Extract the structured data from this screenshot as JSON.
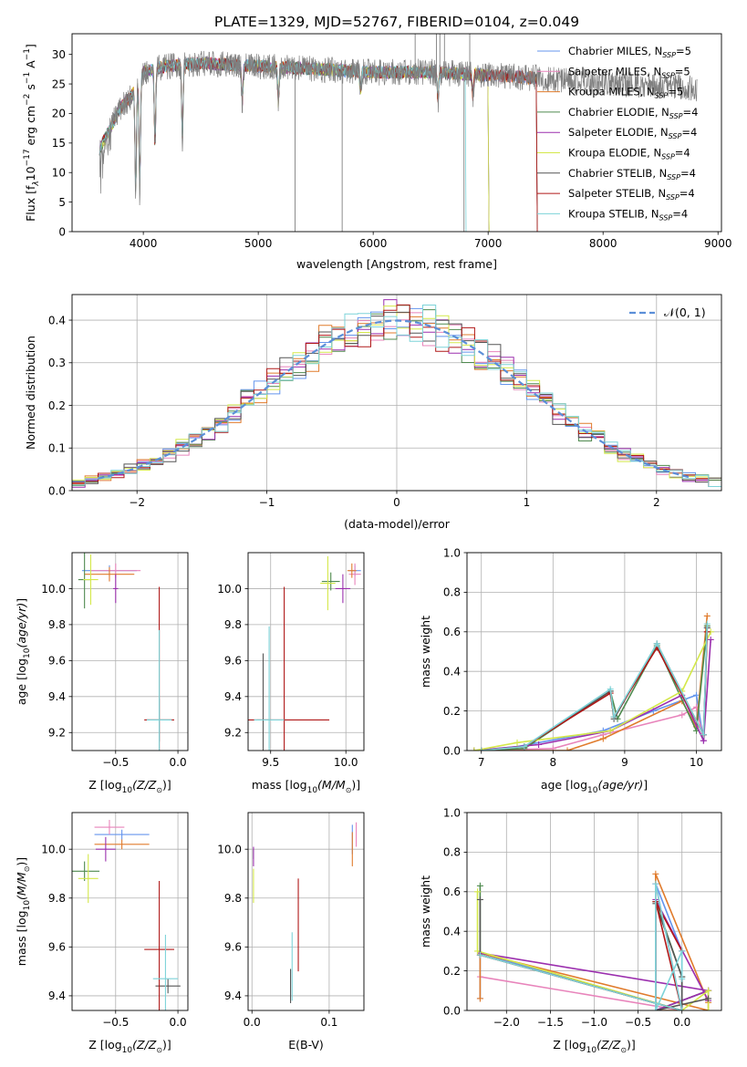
{
  "figure": {
    "title": "PLATE=1329, MJD=52767, FIBERID=0104, z=0.049"
  },
  "models": [
    {
      "label": "Chabrier MILES, N",
      "sub": "SSP",
      "suffix": "=5",
      "color": "#6495ed"
    },
    {
      "label": "Salpeter MILES, N",
      "sub": "SSP",
      "suffix": "=5",
      "color": "#e884bb"
    },
    {
      "label": "Kroupa MILES, N",
      "sub": "SSP",
      "suffix": "=5",
      "color": "#e07b2c"
    },
    {
      "label": "Chabrier ELODIE, N",
      "sub": "SSP",
      "suffix": "=4",
      "color": "#4f8a4f"
    },
    {
      "label": "Salpeter ELODIE, N",
      "sub": "SSP",
      "suffix": "=4",
      "color": "#9b2fae"
    },
    {
      "label": "Kroupa ELODIE, N",
      "sub": "SSP",
      "suffix": "=4",
      "color": "#d4e84a"
    },
    {
      "label": "Chabrier STELIB, N",
      "sub": "SSP",
      "suffix": "=4",
      "color": "#555555"
    },
    {
      "label": "Salpeter STELIB, N",
      "sub": "SSP",
      "suffix": "=4",
      "color": "#b01818"
    },
    {
      "label": "Kroupa STELIB, N",
      "sub": "SSP",
      "suffix": "=4",
      "color": "#7dd3d8"
    }
  ],
  "chart_data": [
    {
      "id": "spectrum",
      "type": "line",
      "xlabel": "wavelength [Angstrom, rest frame]",
      "ylabel_main": "Flux [f",
      "ylabel_lambda": "λ",
      "ylabel_unit": "10",
      "ylabel_exp": "−17",
      "ylabel_rest": " erg cm",
      "ylabel_exp2": "−2",
      "ylabel_rest2": " s",
      "ylabel_exp3": "−1",
      "ylabel_rest3": " A",
      "ylabel_exp4": "−1",
      "ylabel_end": "]",
      "xlim": [
        3380,
        9030
      ],
      "ylim": [
        0,
        33.5
      ],
      "xticks": [
        4000,
        5000,
        6000,
        7000,
        8000,
        9000
      ],
      "yticks": [
        0,
        5,
        10,
        15,
        20,
        25,
        30
      ],
      "data_color": "#808080",
      "continuum": [
        [
          3620,
          14
        ],
        [
          3700,
          17
        ],
        [
          3800,
          21
        ],
        [
          3900,
          23
        ],
        [
          4000,
          27
        ],
        [
          4200,
          28
        ],
        [
          4500,
          28.5
        ],
        [
          5000,
          28
        ],
        [
          5500,
          27.5
        ],
        [
          6000,
          27
        ],
        [
          6500,
          27
        ],
        [
          7000,
          26.5
        ],
        [
          7400,
          26
        ],
        [
          7800,
          25.5
        ],
        [
          8200,
          25
        ],
        [
          8700,
          24.5
        ],
        [
          8820,
          24.2
        ]
      ],
      "data_end": 8820,
      "models_end": [
        7420,
        7420,
        7420,
        7000,
        7000,
        7000,
        7420,
        7420,
        6800
      ],
      "absorption": [
        [
          3934,
          7
        ],
        [
          3969,
          8
        ],
        [
          4102,
          15
        ],
        [
          4340,
          16
        ],
        [
          4861,
          22
        ],
        [
          5175,
          22
        ],
        [
          5890,
          24
        ],
        [
          6563,
          22
        ],
        [
          6867,
          23
        ]
      ],
      "spikes": [
        [
          5320,
          0
        ],
        [
          5730,
          0
        ],
        [
          6365,
          33.5
        ],
        [
          6550,
          33.5
        ],
        [
          6580,
          33.5
        ],
        [
          6620,
          33.5
        ],
        [
          6790,
          0
        ],
        [
          6840,
          33.5
        ]
      ]
    },
    {
      "id": "residuals",
      "type": "histogram",
      "xlabel": "(data-model)/error",
      "ylabel": "Normed distribution",
      "xlim": [
        -2.5,
        2.5
      ],
      "ylim": [
        0,
        0.46
      ],
      "xticks": [
        -2,
        -1,
        0,
        1,
        2
      ],
      "yticks": [
        0,
        0.1,
        0.2,
        0.3,
        0.4
      ],
      "bin_width": 0.1,
      "legend": "𝒩(0, 1)",
      "legend_color": "#5b8fd8"
    },
    {
      "id": "age-vs-Z",
      "type": "errorbar",
      "xlabel_pre": "Z [log",
      "xlabel_sub": "10",
      "xlabel_post": "(Z/Z",
      "xlabel_end": ")]",
      "ylabel": "age  [log10(age/yr)]",
      "xlim": [
        -0.85,
        0.08
      ],
      "ylim": [
        9.1,
        10.2
      ],
      "xticks": [
        -0.5,
        0.0
      ],
      "yticks": [
        9.2,
        9.4,
        9.6,
        9.8,
        10.0
      ],
      "points": [
        {
          "x": -0.55,
          "y": 10.1,
          "xerr": 0.22,
          "yerr": 0.03,
          "model": 0
        },
        {
          "x": -0.5,
          "y": 10.1,
          "xerr": 0.2,
          "yerr": 0.04,
          "model": 1
        },
        {
          "x": -0.55,
          "y": 10.08,
          "xerr": 0.2,
          "yerr": 0.04,
          "model": 2
        },
        {
          "x": -0.75,
          "y": 10.05,
          "xerr": 0.05,
          "yerr": 0.16,
          "model": 3
        },
        {
          "x": -0.5,
          "y": 10.0,
          "xerr": 0.02,
          "yerr": 0.08,
          "model": 4
        },
        {
          "x": -0.7,
          "y": 10.05,
          "xerr": 0.06,
          "yerr": 0.14,
          "model": 5
        },
        {
          "x": -0.15,
          "y": 9.27,
          "xerr": 0.1,
          "yerr": 0.12,
          "model": 6
        },
        {
          "x": -0.15,
          "y": 9.27,
          "xerr": 0.12,
          "yerr": 0.74,
          "model": 7
        },
        {
          "x": -0.15,
          "y": 9.27,
          "xerr": 0.1,
          "yerr": 0.5,
          "model": 8
        }
      ]
    },
    {
      "id": "age-vs-mass",
      "type": "errorbar",
      "xlabel_pre": "mass [log",
      "xlabel_sub": "10",
      "xlabel_post": "(M/M",
      "xlabel_end": ")]",
      "ylabel": "",
      "xlim": [
        9.35,
        10.12
      ],
      "ylim": [
        9.1,
        10.2
      ],
      "xticks": [
        9.5,
        10.0
      ],
      "yticks": [
        9.2,
        9.4,
        9.6,
        9.8,
        10.0
      ],
      "points": [
        {
          "x": 10.06,
          "y": 10.1,
          "xerr": 0.04,
          "yerr": 0.03,
          "model": 0
        },
        {
          "x": 10.06,
          "y": 10.08,
          "xerr": 0.04,
          "yerr": 0.06,
          "model": 1
        },
        {
          "x": 10.04,
          "y": 10.1,
          "xerr": 0.03,
          "yerr": 0.04,
          "model": 2
        },
        {
          "x": 9.9,
          "y": 10.04,
          "xerr": 0.06,
          "yerr": 0.05,
          "model": 3
        },
        {
          "x": 9.98,
          "y": 10.0,
          "xerr": 0.05,
          "yerr": 0.08,
          "model": 4
        },
        {
          "x": 9.88,
          "y": 10.03,
          "xerr": 0.05,
          "yerr": 0.15,
          "model": 5
        },
        {
          "x": 9.45,
          "y": 9.27,
          "xerr": 0.04,
          "yerr": 0.37,
          "model": 6
        },
        {
          "x": 9.59,
          "y": 9.27,
          "xerr": 0.3,
          "yerr": 0.74,
          "model": 7
        },
        {
          "x": 9.49,
          "y": 9.27,
          "xerr": 0.1,
          "yerr": 0.52,
          "model": 8
        }
      ]
    },
    {
      "id": "weight-vs-age",
      "type": "line",
      "xlabel_pre": "age  [log",
      "xlabel_sub": "10",
      "xlabel_post": "(age/yr)]",
      "ylabel": "mass weight",
      "xlim": [
        6.8,
        10.35
      ],
      "ylim": [
        0,
        1.0
      ],
      "xticks": [
        7,
        8,
        9,
        10
      ],
      "yticks": [
        0.0,
        0.2,
        0.4,
        0.6,
        0.8,
        1.0
      ],
      "series": [
        {
          "model": 0,
          "x": [
            6.9,
            7.5,
            8.7,
            9.4,
            10.0,
            10.1,
            10.15
          ],
          "y": [
            0.0,
            0.02,
            0.1,
            0.2,
            0.28,
            0.05,
            0.62
          ]
        },
        {
          "model": 1,
          "x": [
            6.9,
            8.0,
            8.7,
            9.8,
            10.0,
            10.1,
            10.15
          ],
          "y": [
            0.0,
            0.01,
            0.08,
            0.18,
            0.22,
            0.05,
            0.6
          ]
        },
        {
          "model": 2,
          "x": [
            6.9,
            8.2,
            8.7,
            9.8,
            10.0,
            10.15
          ],
          "y": [
            0.0,
            0.0,
            0.06,
            0.25,
            0.12,
            0.68
          ]
        },
        {
          "model": 3,
          "x": [
            6.9,
            7.6,
            8.8,
            8.9,
            9.45,
            10.0,
            10.15
          ],
          "y": [
            0.0,
            0.01,
            0.3,
            0.16,
            0.53,
            0.1,
            0.63
          ]
        },
        {
          "model": 4,
          "x": [
            6.9,
            7.8,
            8.8,
            9.8,
            10.1,
            10.2
          ],
          "y": [
            0.0,
            0.03,
            0.1,
            0.28,
            0.05,
            0.56
          ]
        },
        {
          "model": 5,
          "x": [
            6.9,
            7.5,
            8.8,
            9.8,
            10.2
          ],
          "y": [
            0.0,
            0.04,
            0.1,
            0.3,
            0.6
          ]
        },
        {
          "model": 6,
          "x": [
            7.0,
            7.6,
            8.8,
            8.85,
            9.45,
            10.1,
            10.15
          ],
          "y": [
            0.0,
            0.02,
            0.3,
            0.16,
            0.54,
            0.08,
            0.62
          ]
        },
        {
          "model": 7,
          "x": [
            7.0,
            7.6,
            8.8,
            8.85,
            9.45,
            10.1,
            10.15
          ],
          "y": [
            0.0,
            0.02,
            0.29,
            0.17,
            0.52,
            0.08,
            0.6
          ]
        },
        {
          "model": 8,
          "x": [
            7.0,
            7.6,
            8.8,
            8.85,
            9.45,
            10.1,
            10.15
          ],
          "y": [
            0.0,
            0.02,
            0.31,
            0.17,
            0.54,
            0.08,
            0.64
          ]
        }
      ]
    },
    {
      "id": "mass-vs-Z",
      "type": "errorbar",
      "xlabel_pre": "Z [log",
      "xlabel_sub": "10",
      "xlabel_post": "(Z/Z",
      "xlabel_end": ")]",
      "ylabel": "mass [log10(M/M☉)]",
      "xlim": [
        -0.85,
        0.08
      ],
      "ylim": [
        9.34,
        10.15
      ],
      "xticks": [
        -0.5,
        0.0
      ],
      "yticks": [
        9.4,
        9.6,
        9.8,
        10.0
      ],
      "points": [
        {
          "x": -0.45,
          "y": 10.06,
          "xerr": 0.22,
          "yerr": 0.02,
          "model": 0
        },
        {
          "x": -0.55,
          "y": 10.09,
          "xerr": 0.12,
          "yerr": 0.03,
          "model": 1
        },
        {
          "x": -0.45,
          "y": 10.02,
          "xerr": 0.22,
          "yerr": 0.02,
          "model": 2
        },
        {
          "x": -0.75,
          "y": 9.91,
          "xerr": 0.12,
          "yerr": 0.04,
          "model": 3
        },
        {
          "x": -0.58,
          "y": 10.0,
          "xerr": 0.08,
          "yerr": 0.05,
          "model": 4
        },
        {
          "x": -0.72,
          "y": 9.88,
          "xerr": 0.08,
          "yerr": 0.1,
          "model": 5
        },
        {
          "x": -0.08,
          "y": 9.44,
          "xerr": 0.1,
          "yerr": 0.03,
          "model": 6
        },
        {
          "x": -0.15,
          "y": 9.59,
          "xerr": 0.12,
          "yerr": 0.28,
          "model": 7
        },
        {
          "x": -0.1,
          "y": 9.47,
          "xerr": 0.1,
          "yerr": 0.18,
          "model": 8
        }
      ]
    },
    {
      "id": "mass-vs-ebv",
      "type": "errorbar",
      "xlabel": "E(B-V)",
      "ylabel": "",
      "xlim": [
        -0.005,
        0.145
      ],
      "ylim": [
        9.34,
        10.15
      ],
      "xticks": [
        0.0,
        0.1
      ],
      "yticks": [
        9.4,
        9.6,
        9.8,
        10.0
      ],
      "points": [
        {
          "x": 0.13,
          "y": 10.04,
          "xerr": 0.0,
          "yerr": 0.06,
          "model": 0
        },
        {
          "x": 0.135,
          "y": 10.06,
          "xerr": 0.0,
          "yerr": 0.05,
          "model": 1
        },
        {
          "x": 0.13,
          "y": 10.0,
          "xerr": 0.0,
          "yerr": 0.07,
          "model": 2
        },
        {
          "x": 0.002,
          "y": 9.98,
          "xerr": 0.0,
          "yerr": 0.02,
          "model": 3
        },
        {
          "x": 0.002,
          "y": 9.97,
          "xerr": 0.0,
          "yerr": 0.04,
          "model": 4
        },
        {
          "x": 0.002,
          "y": 9.85,
          "xerr": 0.0,
          "yerr": 0.07,
          "model": 5
        },
        {
          "x": 0.05,
          "y": 9.44,
          "xerr": 0.0,
          "yerr": 0.07,
          "model": 6
        },
        {
          "x": 0.06,
          "y": 9.69,
          "xerr": 0.0,
          "yerr": 0.19,
          "model": 7
        },
        {
          "x": 0.052,
          "y": 9.52,
          "xerr": 0.0,
          "yerr": 0.14,
          "model": 8
        }
      ]
    },
    {
      "id": "weight-vs-Z",
      "type": "line",
      "xlabel_pre": "Z [log",
      "xlabel_sub": "10",
      "xlabel_post": "(Z/Z",
      "xlabel_end": ")]",
      "ylabel": "mass weight",
      "xlim": [
        -2.45,
        0.45
      ],
      "ylim": [
        0,
        1.0
      ],
      "xticks": [
        -2.0,
        -1.5,
        -1.0,
        -0.5,
        0.0
      ],
      "xticklabels": [
        "−2.0",
        "−1.5",
        "−1.0",
        "−0.5",
        "0.0"
      ],
      "yticks": [
        0.0,
        0.2,
        0.4,
        0.6,
        0.8,
        1.0
      ],
      "series": [
        {
          "model": 0,
          "x": [
            -2.3,
            -2.3,
            0.0,
            0.0,
            -0.3,
            -0.3,
            0.3
          ],
          "y": [
            0.06,
            0.29,
            0.0,
            0.3,
            0.64,
            0.0,
            0.1
          ]
        },
        {
          "model": 1,
          "x": [
            -2.3,
            0.0,
            -0.3,
            -0.3,
            0.3
          ],
          "y": [
            0.17,
            0.0,
            0.64,
            0.0,
            0.1
          ]
        },
        {
          "model": 2,
          "x": [
            -2.3,
            -2.3,
            0.3,
            0.3,
            -0.3,
            -0.3,
            -0.0
          ],
          "y": [
            0.06,
            0.29,
            0.0,
            0.04,
            0.69,
            0.0,
            0.0
          ]
        },
        {
          "model": 3,
          "x": [
            -2.3,
            -2.3,
            0.0,
            0.0,
            -0.3,
            -0.3,
            0.3
          ],
          "y": [
            0.63,
            0.28,
            0.0,
            0.17,
            0.55,
            0.0,
            0.1
          ]
        },
        {
          "model": 4,
          "x": [
            -2.3,
            0.3,
            0.3,
            -0.3,
            -0.3,
            0.3
          ],
          "y": [
            0.29,
            0.1,
            0.05,
            0.56,
            0.0,
            0.1
          ]
        },
        {
          "model": 5,
          "x": [
            -2.33,
            -2.33,
            0.0,
            0.3,
            0.3
          ],
          "y": [
            0.6,
            0.3,
            0.0,
            0.1,
            0.0
          ]
        },
        {
          "model": 6,
          "x": [
            -2.3,
            -2.3,
            0.0,
            0.0,
            -0.3,
            -0.3,
            0.3
          ],
          "y": [
            0.56,
            0.28,
            0.0,
            0.17,
            0.54,
            0.0,
            0.06
          ]
        },
        {
          "model": 7,
          "x": [
            -2.3,
            0.0,
            -0.3,
            0.0
          ],
          "y": [
            0.28,
            0.0,
            0.55,
            0.3
          ]
        },
        {
          "model": 8,
          "x": [
            -2.3,
            0.0,
            -0.3,
            -0.3,
            0.0,
            0.0
          ],
          "y": [
            0.28,
            0.0,
            0.64,
            0.0,
            0.3,
            0.16
          ]
        }
      ]
    }
  ]
}
